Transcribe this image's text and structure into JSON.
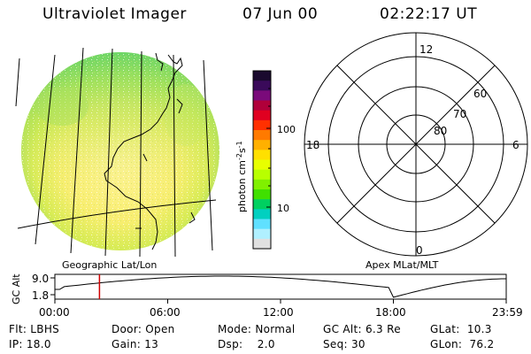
{
  "header": {
    "instrument": "Ultraviolet Imager",
    "date": "07 Jun 00",
    "time": "02:22:17 UT"
  },
  "colorbar": {
    "unit_label": "photon cm",
    "unit_sup1": "-2",
    "unit_mid": "s",
    "unit_sup2": "-1",
    "tick_100": "100",
    "tick_10": "10",
    "colors_top_to_bottom": [
      "#1a0a2e",
      "#3a0a5a",
      "#7a0a7a",
      "#b0003a",
      "#e00020",
      "#ff3000",
      "#ff7a00",
      "#ffb000",
      "#ffe000",
      "#e8ff00",
      "#b8ff00",
      "#80f000",
      "#40e000",
      "#00d060",
      "#00d0c0",
      "#60e0ff",
      "#b0f0ff",
      "#e0e0e0"
    ]
  },
  "left_panel": {
    "label": "Geographic Lat/Lon"
  },
  "polar_plot": {
    "label": "Apex MLat/MLT",
    "mlt_top": "12",
    "mlt_bottom": "0",
    "mlt_left": "18",
    "mlt_right": "6",
    "lat_60": "60",
    "lat_70": "70",
    "lat_80": "80"
  },
  "alt_strip": {
    "ylabel": "GC Alt",
    "tick_high": "9.0",
    "tick_low": "1.8",
    "x_ticks": [
      "00:00",
      "06:00",
      "12:00",
      "18:00",
      "23:59"
    ],
    "current_time_hours": 2.37
  },
  "status": {
    "flt": "Flt: LBHS",
    "ip": "IP: 18.0",
    "door": "Door: Open",
    "gain": "Gain: 13",
    "mode": "Mode: Normal",
    "dsp": "Dsp:    2.0",
    "gc_alt": "GC Alt: 6.3 Re",
    "seq": "Seq: 30",
    "glat": "GLat:  10.3",
    "glon": "GLon:  76.2"
  }
}
